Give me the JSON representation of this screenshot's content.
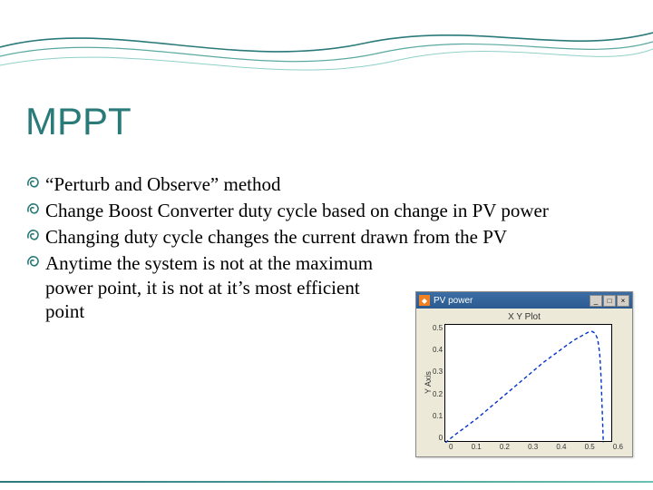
{
  "slide": {
    "title": "MPPT",
    "title_color": "#2b7a7a",
    "title_fontsize": 42,
    "bullet_fontsize": 21,
    "bullet_icon_color": "#2b7a7a",
    "bullets": [
      {
        "text": "“Perturb and Observe” method",
        "narrow": false
      },
      {
        "text": "Change Boost Converter duty cycle based on change in PV power",
        "narrow": false
      },
      {
        "text": "Changing duty cycle changes the current drawn from the PV",
        "narrow": false
      },
      {
        "text": "Anytime the system is not at the maximum power point, it is not at it’s most efficient point",
        "narrow": true
      }
    ]
  },
  "header_wave": {
    "line_colors": [
      "#2b7a7a",
      "#5aa9a0",
      "#8fd0c8"
    ],
    "line_widths": [
      1.6,
      1.2,
      1.0
    ]
  },
  "chart": {
    "window_title": "PV power",
    "plot_title": "X Y Plot",
    "yaxis_label": "Y Axis",
    "type": "line",
    "line_color": "#0033cc",
    "line_dash": "4 3",
    "line_width": 1.4,
    "background_color": "#ffffff",
    "window_bg": "#ece9d8",
    "titlebar_gradient": [
      "#3b6ea5",
      "#2b5a90"
    ],
    "xlim": [
      0,
      0.6
    ],
    "ylim": [
      0,
      0.5
    ],
    "xticks": [
      "0",
      "0.1",
      "0.2",
      "0.3",
      "0.4",
      "0.5",
      "0.6"
    ],
    "yticks": [
      "0.5",
      "0.4",
      "0.3",
      "0.2",
      "0.1",
      "0"
    ],
    "data_x": [
      0.0,
      0.03,
      0.07,
      0.11,
      0.15,
      0.19,
      0.23,
      0.27,
      0.31,
      0.35,
      0.39,
      0.43,
      0.46,
      0.49,
      0.51,
      0.525,
      0.535,
      0.545,
      0.552,
      0.557,
      0.561,
      0.565
    ],
    "data_y": [
      0.0,
      0.03,
      0.065,
      0.1,
      0.14,
      0.18,
      0.22,
      0.26,
      0.3,
      0.34,
      0.375,
      0.41,
      0.435,
      0.455,
      0.468,
      0.472,
      0.465,
      0.44,
      0.38,
      0.28,
      0.14,
      0.0
    ]
  }
}
